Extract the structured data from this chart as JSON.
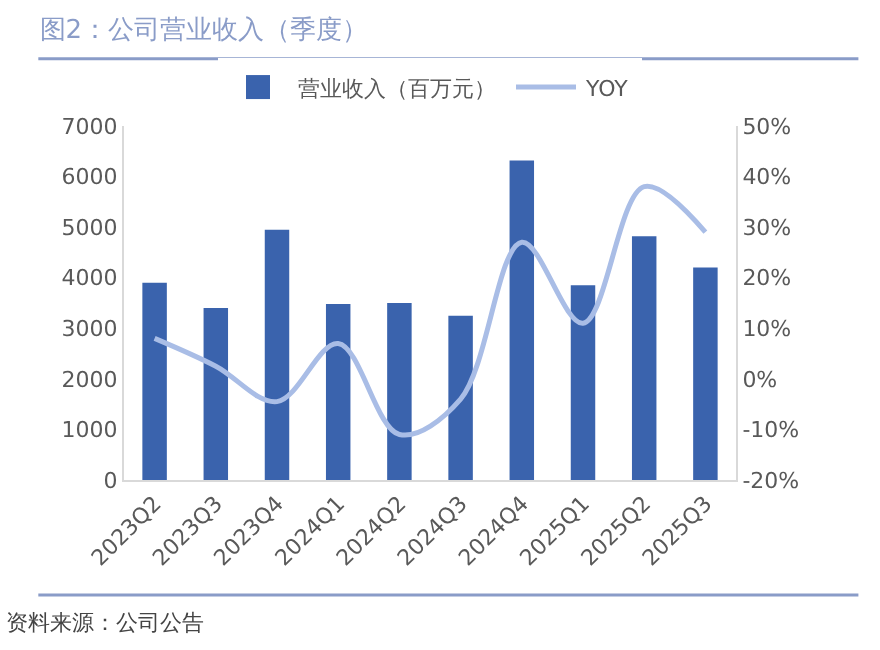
{
  "chart_data": {
    "type": "bar",
    "title": "图2：公司营业收入（季度）",
    "categories": [
      "2023Q2",
      "2023Q3",
      "2023Q4",
      "2024Q1",
      "2024Q2",
      "2024Q3",
      "2024Q4",
      "2025Q1",
      "2025Q2",
      "2025Q3"
    ],
    "series": [
      {
        "name": "营业收入（百万元）",
        "color": "#3a63ad",
        "values": [
          3900,
          3400,
          4950,
          3480,
          3500,
          3250,
          6320,
          3850,
          4820,
          4200
        ]
      },
      {
        "name": "YOY",
        "type": "line",
        "axis": "y2",
        "color": "#a9bde6",
        "values": [
          8,
          2.5,
          -4.5,
          7,
          -11,
          -4,
          27,
          11,
          38,
          29
        ]
      }
    ],
    "ylim": [
      0,
      7000
    ],
    "yticks": [
      0,
      1000,
      2000,
      3000,
      4000,
      5000,
      6000,
      7000
    ],
    "y2lim": [
      -20,
      50
    ],
    "y2ticks": [
      {
        "value": -20,
        "label": "-20%"
      },
      {
        "value": -10,
        "label": "-10%"
      },
      {
        "value": 0,
        "label": "0%"
      },
      {
        "value": 10,
        "label": "10%"
      },
      {
        "value": 20,
        "label": "20%"
      },
      {
        "value": 30,
        "label": "30%"
      },
      {
        "value": 40,
        "label": "40%"
      },
      {
        "value": 50,
        "label": "50%"
      }
    ],
    "grid": false,
    "legend": "top",
    "annotations": [
      "资料来源：公司公告"
    ]
  }
}
